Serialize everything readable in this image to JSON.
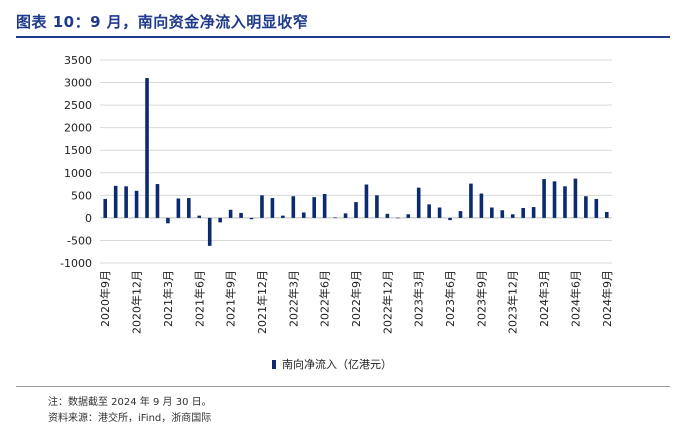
{
  "figure_title": "图表 10：9 月，南向资金净流入明显收窄",
  "footnote": "注：数据截至 2024 年 9 月 30 日。",
  "source": "资料来源：港交所，iFind，浙商国际",
  "colors": {
    "bar": "#0b2a6f",
    "title": "#1f3a8a",
    "grid": "#d9d9d9"
  },
  "chart_data": {
    "type": "bar",
    "title": "",
    "xlabel": "",
    "ylabel": "",
    "ylim": [
      -1000,
      3500
    ],
    "yticks": [
      -1000,
      -500,
      0,
      500,
      1000,
      1500,
      2000,
      2500,
      3000,
      3500
    ],
    "grid": true,
    "legend_position": "bottom",
    "x_tick_labels": [
      "2020年9月",
      "2020年12月",
      "2021年3月",
      "2021年6月",
      "2021年9月",
      "2021年12月",
      "2022年3月",
      "2022年6月",
      "2022年9月",
      "2022年12月",
      "2023年3月",
      "2023年6月",
      "2023年9月",
      "2023年12月",
      "2024年3月",
      "2024年6月",
      "2024年9月"
    ],
    "categories": [
      "2020-09",
      "2020-10",
      "2020-11",
      "2020-12",
      "2021-01",
      "2021-02",
      "2021-03",
      "2021-04",
      "2021-05",
      "2021-06",
      "2021-07",
      "2021-08",
      "2021-09",
      "2021-10",
      "2021-11",
      "2021-12",
      "2022-01",
      "2022-02",
      "2022-03",
      "2022-04",
      "2022-05",
      "2022-06",
      "2022-07",
      "2022-08",
      "2022-09",
      "2022-10",
      "2022-11",
      "2022-12",
      "2023-01",
      "2023-02",
      "2023-03",
      "2023-04",
      "2023-05",
      "2023-06",
      "2023-07",
      "2023-08",
      "2023-09",
      "2023-10",
      "2023-11",
      "2023-12",
      "2024-01",
      "2024-02",
      "2024-03",
      "2024-04",
      "2024-05",
      "2024-06",
      "2024-07",
      "2024-08",
      "2024-09"
    ],
    "series": [
      {
        "name": "南向净流入（亿港元）",
        "values": [
          420,
          710,
          700,
          600,
          3100,
          750,
          -120,
          430,
          440,
          50,
          -620,
          -100,
          180,
          110,
          -30,
          500,
          440,
          50,
          480,
          120,
          460,
          530,
          10,
          100,
          350,
          740,
          500,
          90,
          5,
          80,
          670,
          300,
          230,
          -50,
          150,
          760,
          540,
          230,
          170,
          80,
          220,
          240,
          860,
          810,
          700,
          870,
          480,
          420,
          130
        ]
      }
    ]
  }
}
